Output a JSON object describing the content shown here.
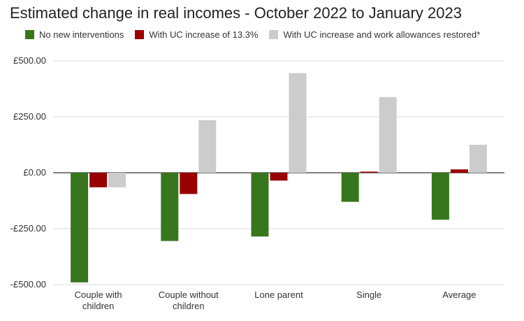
{
  "chart_data": {
    "type": "bar",
    "title": "Estimated change in real incomes - October 2022 to January 2023",
    "categories": [
      "Couple with\nchildren",
      "Couple without\nchildren",
      "Lone parent",
      "Single",
      "Average"
    ],
    "series": [
      {
        "name": "No new interventions",
        "color": "#38761d",
        "values": [
          -490,
          -305,
          -285,
          -130,
          -210
        ]
      },
      {
        "name": "With UC increase of 13.3%",
        "color": "#990000",
        "values": [
          -65,
          -95,
          -35,
          5,
          15
        ]
      },
      {
        "name": "With UC increase and work allowances restored*",
        "color": "#cccccc",
        "values": [
          -65,
          235,
          445,
          338,
          125
        ]
      }
    ],
    "yticks": [
      "£500.00",
      "£250.00",
      "£0.00",
      "-£250.00",
      "-£500.00"
    ],
    "ytick_values": [
      500,
      250,
      0,
      -250,
      -500
    ],
    "ylim": [
      -500,
      500
    ],
    "xlabel": "",
    "ylabel": "",
    "grid": true,
    "legend_position": "top"
  }
}
